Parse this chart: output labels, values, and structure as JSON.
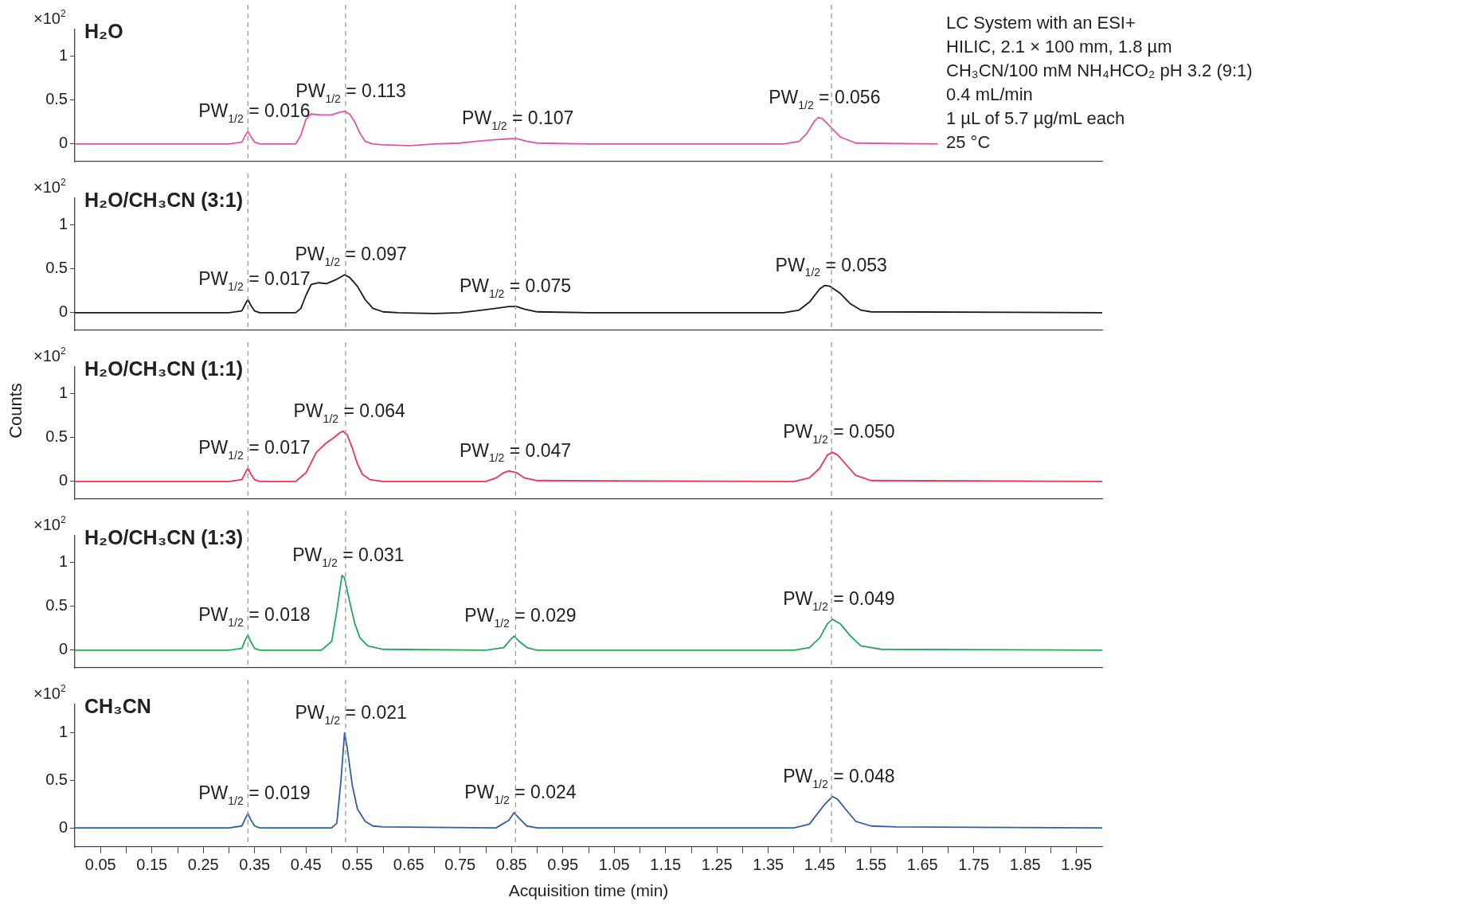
{
  "chart_data": [
    {
      "type": "line",
      "title": "H₂O",
      "ylabel": "×10$^{2}$",
      "tick_labels": "y",
      "marker": "none",
      "line_style": "solid",
      "grid": false,
      "legend": false,
      "xlim": [
        0,
        2
      ],
      "ylim": [
        -0.2,
        1.3
      ],
      "yticks": [
        0,
        0.5,
        1
      ],
      "series": [
        {
          "color": "#e055a8",
          "x": [
            0,
            0.3,
            0.325,
            0.332,
            0.337,
            0.342,
            0.35,
            0.36,
            0.43,
            0.44,
            0.45,
            0.46,
            0.48,
            0.5,
            0.515,
            0.525,
            0.535,
            0.545,
            0.555,
            0.565,
            0.58,
            0.6,
            0.65,
            0.7,
            0.75,
            0.78,
            0.82,
            0.85,
            0.86,
            0.88,
            0.9,
            1.0,
            1.38,
            1.41,
            1.425,
            1.44,
            1.447,
            1.455,
            1.47,
            1.49,
            1.52,
            1.68
          ],
          "values": [
            0,
            0,
            0.02,
            0.1,
            0.14,
            0.09,
            0.02,
            0,
            0,
            0.1,
            0.28,
            0.34,
            0.33,
            0.33,
            0.36,
            0.37,
            0.34,
            0.25,
            0.12,
            0.03,
            0,
            -0.01,
            -0.02,
            0,
            0.01,
            0.03,
            0.05,
            0.06,
            0.06,
            0.03,
            0.01,
            0,
            0,
            0.03,
            0.12,
            0.26,
            0.3,
            0.29,
            0.2,
            0.08,
            0.01,
            0
          ]
        }
      ],
      "ref_lines": [
        {
          "axis": "x",
          "value": 0.337,
          "color": "#999999",
          "line_style": "dashed"
        },
        {
          "axis": "x",
          "value": 0.527,
          "color": "#999999",
          "line_style": "dashed"
        },
        {
          "axis": "x",
          "value": 0.858,
          "color": "#999999",
          "line_style": "dashed"
        },
        {
          "axis": "x",
          "value": 1.473,
          "color": "#999999",
          "line_style": "dashed"
        }
      ],
      "annotations": [
        {
          "text": "PW$_{1/2}$ = 0.016",
          "x": 0.337,
          "y": 0.14
        },
        {
          "text": "PW$_{1/2}$ = 0.113",
          "x": 0.525,
          "y": 0.37
        },
        {
          "text": "PW$_{1/2}$ = 0.107",
          "x": 0.85,
          "y": 0.06
        },
        {
          "text": "PW$_{1/2}$ = 0.056",
          "x": 1.447,
          "y": 0.3
        },
        "LC System with an ESI+",
        "HILIC, 2.1 × 100 mm, 1.8 µm",
        "CH₃CN/100 mM NH₄HCO₂ pH 3.2 (9:1)",
        "0.4 mL/min",
        "1 µL of 5.7 µg/mL each",
        "25 °C"
      ]
    },
    {
      "type": "line",
      "title": "H₂O/CH₃CN (3:1)",
      "ylabel": "×10$^{2}$",
      "tick_labels": "y",
      "marker": "none",
      "line_style": "solid",
      "grid": false,
      "legend": false,
      "xlim": [
        0,
        2
      ],
      "ylim": [
        -0.2,
        1.3
      ],
      "yticks": [
        0,
        0.5,
        1
      ],
      "series": [
        {
          "color": "#1a1a1a",
          "x": [
            0,
            0.3,
            0.325,
            0.332,
            0.337,
            0.342,
            0.35,
            0.36,
            0.43,
            0.44,
            0.45,
            0.46,
            0.475,
            0.49,
            0.51,
            0.525,
            0.535,
            0.55,
            0.565,
            0.58,
            0.6,
            0.63,
            0.7,
            0.75,
            0.78,
            0.82,
            0.845,
            0.86,
            0.875,
            0.9,
            1.0,
            1.38,
            1.41,
            1.43,
            1.45,
            1.46,
            1.47,
            1.49,
            1.51,
            1.53,
            1.55,
            2.0
          ],
          "values": [
            0,
            0,
            0.02,
            0.1,
            0.15,
            0.09,
            0.02,
            0,
            0,
            0.05,
            0.2,
            0.32,
            0.34,
            0.33,
            0.38,
            0.43,
            0.4,
            0.3,
            0.15,
            0.05,
            0.01,
            0,
            -0.01,
            0,
            0.02,
            0.05,
            0.07,
            0.07,
            0.04,
            0.01,
            0,
            0,
            0.03,
            0.12,
            0.27,
            0.31,
            0.3,
            0.22,
            0.1,
            0.03,
            0.01,
            0
          ]
        }
      ],
      "ref_lines": [
        {
          "axis": "x",
          "value": 0.337,
          "color": "#999999",
          "line_style": "dashed"
        },
        {
          "axis": "x",
          "value": 0.527,
          "color": "#999999",
          "line_style": "dashed"
        },
        {
          "axis": "x",
          "value": 0.858,
          "color": "#999999",
          "line_style": "dashed"
        },
        {
          "axis": "x",
          "value": 1.473,
          "color": "#999999",
          "line_style": "dashed"
        }
      ],
      "annotations": [
        {
          "text": "PW$_{1/2}$ = 0.017",
          "x": 0.337,
          "y": 0.15
        },
        {
          "text": "PW$_{1/2}$ = 0.097",
          "x": 0.525,
          "y": 0.43
        },
        {
          "text": "PW$_{1/2}$ = 0.075",
          "x": 0.845,
          "y": 0.07
        },
        {
          "text": "PW$_{1/2}$ = 0.053",
          "x": 1.46,
          "y": 0.31
        }
      ]
    },
    {
      "type": "line",
      "title": "H₂O/CH₃CN (1:1)",
      "ylabel": "×10$^{2}$",
      "tick_labels": "y",
      "marker": "none",
      "line_style": "solid",
      "grid": false,
      "legend": false,
      "xlim": [
        0,
        2
      ],
      "ylim": [
        -0.2,
        1.3
      ],
      "yticks": [
        0,
        0.5,
        1
      ],
      "series": [
        {
          "color": "#ee3350",
          "x": [
            0,
            0.3,
            0.325,
            0.332,
            0.337,
            0.342,
            0.35,
            0.36,
            0.43,
            0.45,
            0.47,
            0.49,
            0.505,
            0.515,
            0.522,
            0.53,
            0.54,
            0.55,
            0.56,
            0.575,
            0.6,
            0.8,
            0.82,
            0.835,
            0.845,
            0.86,
            0.875,
            0.9,
            1.4,
            1.43,
            1.45,
            1.465,
            1.475,
            1.485,
            1.5,
            1.52,
            1.55,
            2.0
          ],
          "values": [
            0,
            0,
            0.02,
            0.1,
            0.15,
            0.09,
            0.02,
            0,
            0,
            0.1,
            0.33,
            0.44,
            0.5,
            0.55,
            0.57,
            0.53,
            0.38,
            0.2,
            0.08,
            0.02,
            0,
            0,
            0.04,
            0.1,
            0.12,
            0.1,
            0.04,
            0.01,
            0,
            0.04,
            0.15,
            0.3,
            0.33,
            0.3,
            0.2,
            0.07,
            0.01,
            0
          ]
        }
      ],
      "ref_lines": [
        {
          "axis": "x",
          "value": 0.337,
          "color": "#999999",
          "line_style": "dashed"
        },
        {
          "axis": "x",
          "value": 0.527,
          "color": "#999999",
          "line_style": "dashed"
        },
        {
          "axis": "x",
          "value": 0.858,
          "color": "#999999",
          "line_style": "dashed"
        },
        {
          "axis": "x",
          "value": 1.473,
          "color": "#999999",
          "line_style": "dashed"
        }
      ],
      "annotations": [
        {
          "text": "PW$_{1/2}$ = 0.017",
          "x": 0.337,
          "y": 0.15
        },
        {
          "text": "PW$_{1/2}$ = 0.064",
          "x": 0.522,
          "y": 0.57
        },
        {
          "text": "PW$_{1/2}$ = 0.047",
          "x": 0.845,
          "y": 0.12
        },
        {
          "text": "PW$_{1/2}$ = 0.050",
          "x": 1.475,
          "y": 0.33
        },
        "Counts"
      ]
    },
    {
      "type": "line",
      "title": "H₂O/CH₃CN (1:3)",
      "ylabel": "×10$^{2}$",
      "tick_labels": "y",
      "marker": "none",
      "line_style": "solid",
      "grid": false,
      "legend": false,
      "xlim": [
        0,
        2
      ],
      "ylim": [
        -0.2,
        1.3
      ],
      "yticks": [
        0,
        0.5,
        1
      ],
      "series": [
        {
          "color": "#22a85a",
          "x": [
            0,
            0.3,
            0.325,
            0.332,
            0.337,
            0.342,
            0.35,
            0.36,
            0.48,
            0.5,
            0.51,
            0.52,
            0.525,
            0.535,
            0.545,
            0.555,
            0.57,
            0.6,
            0.8,
            0.835,
            0.848,
            0.855,
            0.865,
            0.88,
            0.9,
            1.4,
            1.43,
            1.45,
            1.465,
            1.475,
            1.49,
            1.51,
            1.53,
            1.57,
            2.0
          ],
          "values": [
            0,
            0,
            0.02,
            0.12,
            0.17,
            0.1,
            0.02,
            0,
            0,
            0.1,
            0.45,
            0.85,
            0.82,
            0.55,
            0.3,
            0.14,
            0.05,
            0.01,
            0,
            0.03,
            0.12,
            0.16,
            0.1,
            0.03,
            0,
            0,
            0.03,
            0.14,
            0.3,
            0.35,
            0.3,
            0.16,
            0.05,
            0.01,
            0
          ]
        }
      ],
      "ref_lines": [
        {
          "axis": "x",
          "value": 0.337,
          "color": "#999999",
          "line_style": "dashed"
        },
        {
          "axis": "x",
          "value": 0.527,
          "color": "#999999",
          "line_style": "dashed"
        },
        {
          "axis": "x",
          "value": 0.858,
          "color": "#999999",
          "line_style": "dashed"
        },
        {
          "axis": "x",
          "value": 1.473,
          "color": "#999999",
          "line_style": "dashed"
        }
      ],
      "annotations": [
        {
          "text": "PW$_{1/2}$ = 0.018",
          "x": 0.337,
          "y": 0.17
        },
        {
          "text": "PW$_{1/2}$ = 0.031",
          "x": 0.52,
          "y": 0.85
        },
        {
          "text": "PW$_{1/2}$ = 0.029",
          "x": 0.855,
          "y": 0.16
        },
        {
          "text": "PW$_{1/2}$ = 0.049",
          "x": 1.475,
          "y": 0.35
        }
      ]
    },
    {
      "type": "line",
      "title": "CH₃CN",
      "ylabel": "×10$^{2}$",
      "xlabel": "Acquisition time (min)",
      "marker": "none",
      "line_style": "solid",
      "grid": false,
      "legend": false,
      "xlim": [
        0,
        2
      ],
      "ylim": [
        -0.2,
        1.3
      ],
      "yticks": [
        0,
        0.5,
        1
      ],
      "xticks": [
        0.05,
        {
          "value": 0.1,
          "label": null
        },
        0.15,
        {
          "value": 0.2,
          "label": null
        },
        0.25,
        {
          "value": 0.3,
          "label": null
        },
        0.35,
        {
          "value": 0.4,
          "label": null
        },
        0.45,
        {
          "value": 0.5,
          "label": null
        },
        0.55,
        {
          "value": 0.6,
          "label": null
        },
        0.65,
        {
          "value": 0.7,
          "label": null
        },
        0.75,
        {
          "value": 0.8,
          "label": null
        },
        0.85,
        {
          "value": 0.9,
          "label": null
        },
        0.95,
        {
          "value": 1.0,
          "label": null
        },
        1.05,
        {
          "value": 1.1,
          "label": null
        },
        1.15,
        {
          "value": 1.2,
          "label": null
        },
        1.25,
        {
          "value": 1.3,
          "label": null
        },
        1.35,
        {
          "value": 1.4,
          "label": null
        },
        1.45,
        {
          "value": 1.5,
          "label": null
        },
        1.55,
        {
          "value": 1.6,
          "label": null
        },
        1.65,
        {
          "value": 1.7,
          "label": null
        },
        1.75,
        {
          "value": 1.8,
          "label": null
        },
        1.85,
        {
          "value": 1.9,
          "label": null
        },
        1.95
      ],
      "series": [
        {
          "color": "#2f5fa8",
          "x": [
            0,
            0.3,
            0.325,
            0.332,
            0.337,
            0.342,
            0.35,
            0.36,
            0.5,
            0.51,
            0.518,
            0.525,
            0.53,
            0.54,
            0.55,
            0.565,
            0.58,
            0.6,
            0.82,
            0.845,
            0.855,
            0.865,
            0.88,
            0.9,
            1.4,
            1.43,
            1.46,
            1.475,
            1.485,
            1.5,
            1.52,
            1.55,
            1.6,
            2.0
          ],
          "values": [
            0,
            0,
            0.02,
            0.1,
            0.15,
            0.09,
            0.02,
            0,
            0,
            0.05,
            0.5,
            1.0,
            0.85,
            0.45,
            0.2,
            0.07,
            0.02,
            0.01,
            0,
            0.08,
            0.16,
            0.1,
            0.02,
            0,
            0,
            0.04,
            0.25,
            0.33,
            0.3,
            0.2,
            0.07,
            0.02,
            0.01,
            0
          ]
        }
      ],
      "ref_lines": [
        {
          "axis": "x",
          "value": 0.337,
          "color": "#999999",
          "line_style": "dashed"
        },
        {
          "axis": "x",
          "value": 0.527,
          "color": "#999999",
          "line_style": "dashed"
        },
        {
          "axis": "x",
          "value": 0.858,
          "color": "#999999",
          "line_style": "dashed"
        },
        {
          "axis": "x",
          "value": 1.473,
          "color": "#999999",
          "line_style": "dashed"
        }
      ],
      "annotations": [
        {
          "text": "PW$_{1/2}$ = 0.019",
          "x": 0.337,
          "y": 0.15
        },
        {
          "text": "PW$_{1/2}$ = 0.021",
          "x": 0.525,
          "y": 1.0
        },
        {
          "text": "PW$_{1/2}$ = 0.024",
          "x": 0.855,
          "y": 0.16
        },
        {
          "text": "PW$_{1/2}$ = 0.048",
          "x": 1.475,
          "y": 0.33
        }
      ]
    }
  ]
}
